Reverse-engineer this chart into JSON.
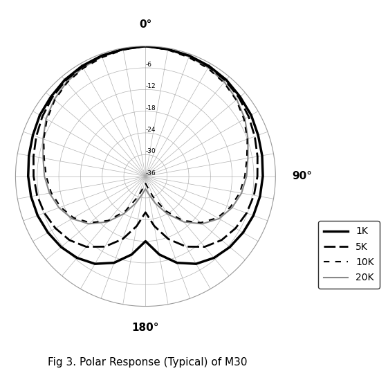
{
  "title": "Fig 3. Polar Response (Typical) of M30",
  "r_min": -36,
  "r_max": 0,
  "r_ticks": [
    -6,
    -12,
    -18,
    -24,
    -30,
    -36
  ],
  "r_tick_labels": [
    "-6",
    "-12",
    "-18",
    "-24",
    "-30",
    "-36"
  ],
  "background_color": "#ffffff",
  "grid_color": "#aaaaaa",
  "series": {
    "1K": {
      "color": "black",
      "linewidth": 2.5,
      "dashes": null,
      "angles_deg": [
        0,
        10,
        20,
        30,
        40,
        50,
        60,
        70,
        80,
        90,
        100,
        110,
        120,
        130,
        140,
        150,
        160,
        170,
        180,
        190,
        200,
        210,
        220,
        230,
        240,
        250,
        260,
        270,
        280,
        290,
        300,
        310,
        320,
        330,
        340,
        350,
        360
      ],
      "values_db": [
        0,
        -0.3,
        -0.5,
        -0.8,
        -1.2,
        -1.8,
        -2.2,
        -2.8,
        -3.2,
        -3.5,
        -3.8,
        -4.2,
        -4.8,
        -5.5,
        -6.5,
        -8.0,
        -10.5,
        -14.0,
        -18.0,
        -14.0,
        -10.5,
        -8.0,
        -6.5,
        -5.5,
        -4.8,
        -4.2,
        -3.8,
        -3.5,
        -3.2,
        -2.8,
        -2.2,
        -1.8,
        -1.2,
        -0.8,
        -0.5,
        -0.3,
        0
      ]
    },
    "5K": {
      "color": "black",
      "linewidth": 2.0,
      "dashes": [
        6,
        2
      ],
      "angles_deg": [
        0,
        10,
        20,
        30,
        40,
        50,
        60,
        70,
        80,
        90,
        100,
        110,
        120,
        130,
        140,
        150,
        160,
        170,
        180,
        190,
        200,
        210,
        220,
        230,
        240,
        250,
        260,
        270,
        280,
        290,
        300,
        310,
        320,
        330,
        340,
        350,
        360
      ],
      "values_db": [
        0,
        -0.3,
        -0.6,
        -1.0,
        -1.5,
        -2.2,
        -3.0,
        -3.8,
        -4.5,
        -5.0,
        -5.5,
        -6.2,
        -7.2,
        -8.5,
        -10.5,
        -13.5,
        -17.5,
        -22.0,
        -26.0,
        -22.0,
        -17.5,
        -13.5,
        -10.5,
        -8.5,
        -7.2,
        -6.2,
        -5.5,
        -5.0,
        -4.5,
        -3.8,
        -3.0,
        -2.2,
        -1.5,
        -1.0,
        -0.6,
        -0.3,
        0
      ]
    },
    "10K": {
      "color": "black",
      "linewidth": 1.5,
      "dashes": [
        4,
        4
      ],
      "angles_deg": [
        0,
        10,
        20,
        30,
        40,
        50,
        60,
        70,
        80,
        90,
        100,
        110,
        120,
        130,
        140,
        150,
        160,
        170,
        180,
        190,
        200,
        210,
        220,
        230,
        240,
        250,
        260,
        270,
        280,
        290,
        300,
        310,
        320,
        330,
        340,
        350,
        360
      ],
      "values_db": [
        0,
        -0.5,
        -1.0,
        -1.5,
        -2.2,
        -3.2,
        -4.5,
        -6.0,
        -7.5,
        -8.5,
        -9.5,
        -11.0,
        -13.0,
        -16.0,
        -20.0,
        -25.0,
        -30.0,
        -33.0,
        -34.0,
        -33.0,
        -30.0,
        -25.0,
        -20.0,
        -16.0,
        -13.0,
        -11.0,
        -9.5,
        -8.5,
        -7.5,
        -6.0,
        -4.5,
        -3.2,
        -2.2,
        -1.5,
        -1.0,
        -0.5,
        0
      ]
    },
    "20K": {
      "color": "#888888",
      "linewidth": 1.5,
      "dashes": null,
      "angles_deg": [
        0,
        10,
        20,
        30,
        40,
        50,
        60,
        70,
        80,
        90,
        100,
        110,
        120,
        130,
        140,
        150,
        160,
        170,
        180,
        190,
        200,
        210,
        220,
        230,
        240,
        250,
        260,
        270,
        280,
        290,
        300,
        310,
        320,
        330,
        340,
        350,
        360
      ],
      "values_db": [
        0,
        -0.4,
        -0.8,
        -1.3,
        -2.0,
        -3.0,
        -4.2,
        -5.8,
        -7.2,
        -8.0,
        -9.0,
        -10.5,
        -12.5,
        -15.5,
        -19.5,
        -24.0,
        -28.0,
        -31.0,
        -32.5,
        -31.0,
        -28.0,
        -24.0,
        -19.5,
        -15.5,
        -12.5,
        -10.5,
        -9.0,
        -8.0,
        -7.2,
        -5.8,
        -4.2,
        -3.0,
        -2.0,
        -1.3,
        -0.8,
        -0.4,
        0
      ]
    }
  },
  "legend_entries": [
    {
      "label": "1K",
      "color": "black",
      "linewidth": 2.5,
      "dashes": null
    },
    {
      "label": "5K",
      "color": "black",
      "linewidth": 2.0,
      "dashes": [
        6,
        2
      ]
    },
    {
      "label": "10K",
      "color": "black",
      "linewidth": 1.5,
      "dashes": [
        4,
        4
      ]
    },
    {
      "label": "20K",
      "color": "#888888",
      "linewidth": 1.5,
      "dashes": null
    }
  ]
}
